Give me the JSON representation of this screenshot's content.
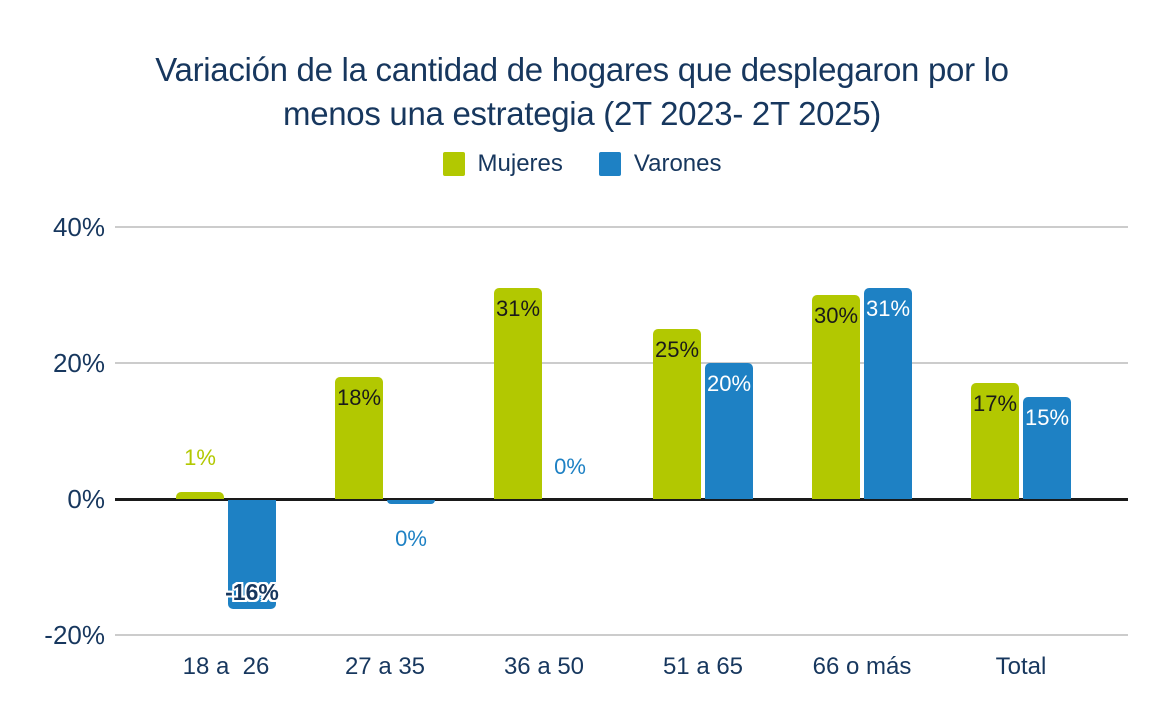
{
  "title": {
    "full": "Variación de la cantidad de hogares que desplegaron por lo menos una estrategia (2T 2023- 2T 2025)",
    "line1": "Variación de la cantidad de hogares que desplegaron por lo",
    "line2": "menos una estrategia (2T 2023- 2T 2025)"
  },
  "legend": {
    "position": "top",
    "items": [
      {
        "label": "Mujeres",
        "color": "#b2c801"
      },
      {
        "label": "Varones",
        "color": "#1e81c4"
      }
    ]
  },
  "colors": {
    "mujeres": "#b2c801",
    "varones": "#1e81c4",
    "navy_text": "#17375e",
    "gridline": "#cccccc",
    "zero_line": "#1a1a1a",
    "bar_label_dark": "#1a1a1a",
    "bar_label_light": "#ffffff"
  },
  "chart_data": {
    "type": "bar",
    "title": "Variación de la cantidad de hogares que desplegaron por lo menos una estrategia (2T 2023- 2T 2025)",
    "categories": [
      "18 a  26",
      "27 a 35",
      "36 a 50",
      "51 a 65",
      "66 o más",
      "Total"
    ],
    "series": [
      {
        "name": "Mujeres",
        "color": "#b2c801",
        "values": [
          1,
          18,
          31,
          25,
          30,
          17
        ],
        "labels": [
          "1%",
          "18%",
          "31%",
          "25%",
          "30%",
          "17%"
        ],
        "label_placements": [
          "above-bar",
          "inside-top",
          "inside-top",
          "inside-top",
          "inside-top",
          "inside-top"
        ],
        "label_colors": [
          "#b2c801",
          "#1a1a1a",
          "#1a1a1a",
          "#1a1a1a",
          "#1a1a1a",
          "#1a1a1a"
        ]
      },
      {
        "name": "Varones",
        "color": "#1e81c4",
        "values": [
          -16,
          0,
          0,
          20,
          31,
          15
        ],
        "draw_values": [
          -16,
          -0.6,
          0,
          20,
          31,
          15
        ],
        "labels": [
          "-16%",
          "0%",
          "0%",
          "20%",
          "31%",
          "15%"
        ],
        "label_placements": [
          "inside-bottom-outline",
          "below-axis",
          "above-axis",
          "inside-top",
          "inside-top",
          "inside-top"
        ],
        "label_colors": [
          "#17375e",
          "#1e81c4",
          "#1e81c4",
          "#ffffff",
          "#ffffff",
          "#ffffff"
        ]
      }
    ],
    "y_axis": {
      "ticks": [
        {
          "label": "40%",
          "value": 40
        },
        {
          "label": "20%",
          "value": 20
        },
        {
          "label": "0%",
          "value": 0
        },
        {
          "label": "-20%",
          "value": -20
        }
      ],
      "ylim": [
        -20,
        40
      ]
    },
    "grid": true,
    "legend_position": "top"
  }
}
